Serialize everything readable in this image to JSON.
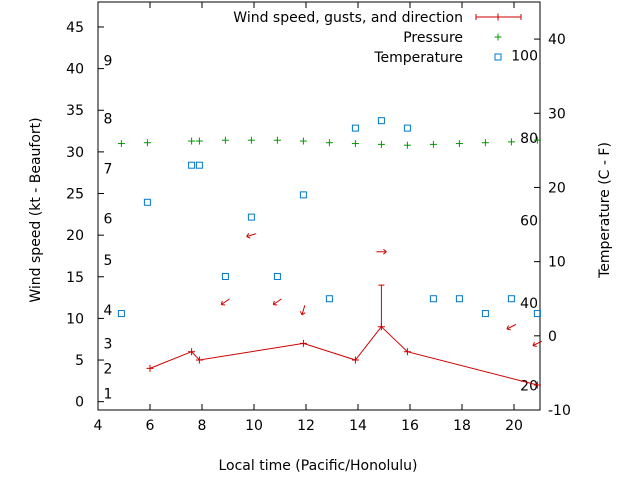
{
  "chart_data": {
    "type": "line",
    "xlabel": "Local time (Pacific/Honolulu)",
    "ylabel_left": "Wind speed (kt - Beaufort)",
    "ylabel_right": "Temperature (C - F)",
    "xlim": [
      4,
      21
    ],
    "ylim_left": [
      -1,
      48
    ],
    "ylim_right": [
      -10,
      45
    ],
    "x_ticks": [
      "4",
      "6",
      "8",
      "10",
      "12",
      "14",
      "16",
      "18",
      "20"
    ],
    "y_left_ticks": [
      "0",
      "5",
      "10",
      "15",
      "20",
      "25",
      "30",
      "35",
      "40",
      "45"
    ],
    "y_right_ticks": [
      "-10",
      "0",
      "10",
      "20",
      "30",
      "40"
    ],
    "beaufort_labels": [
      {
        "label": "1",
        "kt": 1
      },
      {
        "label": "2",
        "kt": 4
      },
      {
        "label": "3",
        "kt": 7
      },
      {
        "label": "4",
        "kt": 11
      },
      {
        "label": "5",
        "kt": 17
      },
      {
        "label": "6",
        "kt": 22
      },
      {
        "label": "7",
        "kt": 28
      },
      {
        "label": "8",
        "kt": 34
      },
      {
        "label": "9",
        "kt": 41
      }
    ],
    "fahrenheit_labels": [
      {
        "label": "20",
        "celsius": -6.67
      },
      {
        "label": "40",
        "celsius": 4.44
      },
      {
        "label": "60",
        "celsius": 15.56
      },
      {
        "label": "80",
        "celsius": 26.67
      },
      {
        "label": "100",
        "celsius": 37.78
      }
    ],
    "legend": [
      {
        "label": "Wind speed, gusts, and direction",
        "color": "#cc0000"
      },
      {
        "label": "Pressure",
        "color": "#009900"
      },
      {
        "label": "Temperature",
        "color": "#0077cc"
      }
    ],
    "series": [
      {
        "name": "Wind speed",
        "x": [
          6,
          7.6,
          7.9,
          11.9,
          13.9,
          14.9,
          15.9,
          20.9
        ],
        "y": [
          4,
          6,
          5,
          7,
          5,
          9,
          6,
          2
        ],
        "gusts": [
          {
            "x": 14.9,
            "low": 9,
            "high": 14
          }
        ]
      },
      {
        "name": "Wind direction",
        "arrows": [
          {
            "x": 9.9,
            "y": 20
          },
          {
            "x": 8.9,
            "y": 12
          },
          {
            "x": 10.9,
            "y": 12
          },
          {
            "x": 11.9,
            "y": 11
          },
          {
            "x": 14.9,
            "y": 18
          },
          {
            "x": 19.9,
            "y": 9
          },
          {
            "x": 20.9,
            "y": 7
          }
        ]
      },
      {
        "name": "Pressure",
        "x": [
          4.9,
          5.9,
          7.6,
          7.9,
          8.9,
          9.9,
          10.9,
          11.9,
          12.9,
          13.9,
          14.9,
          15.9,
          16.9,
          17.9,
          18.9,
          19.9,
          20.9
        ],
        "y": [
          31,
          31.1,
          31.3,
          31.3,
          31.4,
          31.4,
          31.4,
          31.3,
          31.1,
          31.0,
          30.9,
          30.8,
          30.9,
          31.0,
          31.1,
          31.2,
          31.4
        ]
      },
      {
        "name": "Temperature",
        "x": [
          4.9,
          5.9,
          7.6,
          7.9,
          8.9,
          9.9,
          10.9,
          11.9,
          12.9,
          13.9,
          14.9,
          15.9,
          16.9,
          17.9,
          18.9,
          19.9,
          20.9
        ],
        "y": [
          3,
          18,
          23,
          23,
          8,
          16,
          8,
          19,
          5,
          28,
          29,
          28,
          5,
          5,
          3,
          5,
          3
        ]
      }
    ]
  }
}
